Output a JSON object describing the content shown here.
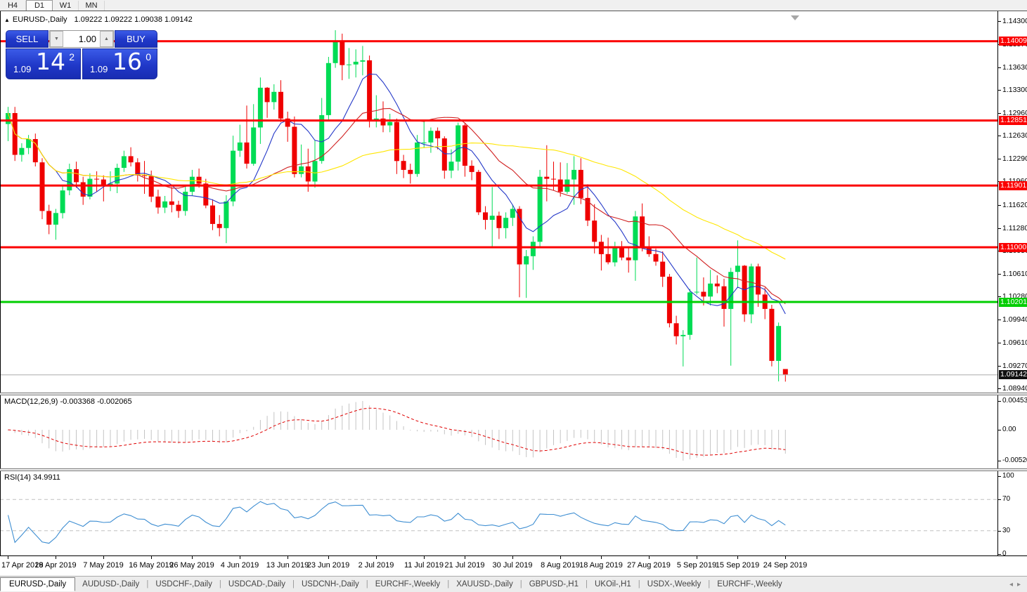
{
  "toolbar": {
    "timeframes": [
      {
        "label": "H4",
        "active": false
      },
      {
        "label": "D1",
        "active": true
      },
      {
        "label": "W1",
        "active": false
      },
      {
        "label": "MN",
        "active": false
      }
    ]
  },
  "title": {
    "arrow": "▲",
    "symbol": "EURUSD-,Daily",
    "ohlc": "1.09222 1.09222 1.09038 1.09142"
  },
  "trade_panel": {
    "sell_label": "SELL",
    "buy_label": "BUY",
    "volume": "1.00",
    "icons": {
      "down": "▼",
      "up": "▲"
    },
    "sell_price": {
      "prefix": "1.09",
      "big": "14",
      "sup": "2"
    },
    "buy_price": {
      "prefix": "1.09",
      "big": "16",
      "sup": "0"
    }
  },
  "tabs": {
    "separator": "|",
    "scroll_left": "◂",
    "scroll_right": "▸",
    "items": [
      {
        "label": "EURUSD-,Daily",
        "active": true
      },
      {
        "label": "AUDUSD-,Daily",
        "active": false
      },
      {
        "label": "USDCHF-,Daily",
        "active": false
      },
      {
        "label": "USDCAD-,Daily",
        "active": false
      },
      {
        "label": "USDCNH-,Daily",
        "active": false
      },
      {
        "label": "EURCHF-,Weekly",
        "active": false
      },
      {
        "label": "XAUUSD-,Daily",
        "active": false
      },
      {
        "label": "GBPUSD-,H1",
        "active": false
      },
      {
        "label": "UKOil-,H1",
        "active": false
      },
      {
        "label": "USDX-,Weekly",
        "active": false
      },
      {
        "label": "EURCHF-,Weekly",
        "active": false
      }
    ]
  },
  "chart_data": {
    "type": "candlestick",
    "symbol": "EURUSD-",
    "timeframe": "Daily",
    "colors": {
      "up": "#00DC55",
      "down": "#EF0000",
      "ma_fast": "#2438C8",
      "ma_mid": "#D02020",
      "ma_slow": "#FFE600",
      "hline_red": "#FB0000",
      "hline_green": "#00CE00",
      "current_line": "#ABABAB",
      "current_bg": "#111111",
      "macd_hist": "#C4C4C4",
      "macd_signal": "#E00000",
      "rsi_line": "#3E8ED2"
    },
    "price_axis_ticks": [
      "1.14300",
      "1.13970",
      "1.13630",
      "1.13300",
      "1.12960",
      "1.12630",
      "1.12290",
      "1.11960",
      "1.11620",
      "1.11280",
      "1.10950",
      "1.10610",
      "1.10280",
      "1.09940",
      "1.09610",
      "1.09270",
      "1.08940"
    ],
    "hlines": [
      {
        "price": 1.14009,
        "label": "1.14009",
        "color": "#FB0000"
      },
      {
        "price": 1.12851,
        "label": "1.12851",
        "color": "#FB0000"
      },
      {
        "price": 1.11901,
        "label": "1.11901",
        "color": "#FB0000"
      },
      {
        "price": 1.11,
        "label": "1.11000",
        "color": "#FB0000"
      },
      {
        "price": 1.10201,
        "label": "1.10201",
        "color": "#00CE00"
      }
    ],
    "current_price": {
      "price": 1.09142,
      "label": "1.09142"
    },
    "moving_averages": [
      {
        "period": 8,
        "color": "#2438C8"
      },
      {
        "period": 20,
        "color": "#D02020"
      },
      {
        "period": 45,
        "color": "#FFE600"
      }
    ],
    "date_ticks": [
      {
        "label": "17 Apr 2019",
        "bar": 0
      },
      {
        "label": "28 Apr 2019",
        "bar": 7
      },
      {
        "label": "7 May 2019",
        "bar": 14
      },
      {
        "label": "16 May 2019",
        "bar": 21
      },
      {
        "label": "26 May 2019",
        "bar": 27
      },
      {
        "label": "4 Jun 2019",
        "bar": 34
      },
      {
        "label": "13 Jun 2019",
        "bar": 41
      },
      {
        "label": "23 Jun 2019",
        "bar": 47
      },
      {
        "label": "2 Jul 2019",
        "bar": 54
      },
      {
        "label": "11 Jul 2019",
        "bar": 61
      },
      {
        "label": "21 Jul 2019",
        "bar": 67
      },
      {
        "label": "30 Jul 2019",
        "bar": 74
      },
      {
        "label": "8 Aug 2019",
        "bar": 81
      },
      {
        "label": "18 Aug 2019",
        "bar": 87
      },
      {
        "label": "27 Aug 2019",
        "bar": 94
      },
      {
        "label": "5 Sep 2019",
        "bar": 101
      },
      {
        "label": "15 Sep 2019",
        "bar": 107
      },
      {
        "label": "24 Sep 2019",
        "bar": 114
      }
    ],
    "candles": [
      [
        1.128,
        1.1305,
        1.1255,
        1.1296
      ],
      [
        1.1296,
        1.1305,
        1.1226,
        1.1235
      ],
      [
        1.1235,
        1.1252,
        1.1225,
        1.1245
      ],
      [
        1.1245,
        1.1264,
        1.1236,
        1.1258
      ],
      [
        1.1258,
        1.1266,
        1.1218,
        1.1224
      ],
      [
        1.1224,
        1.123,
        1.1141,
        1.1153
      ],
      [
        1.1153,
        1.1162,
        1.1119,
        1.1133
      ],
      [
        1.1133,
        1.1156,
        1.1111,
        1.115
      ],
      [
        1.115,
        1.119,
        1.1142,
        1.1183
      ],
      [
        1.1183,
        1.1222,
        1.1176,
        1.1214
      ],
      [
        1.1214,
        1.1225,
        1.1187,
        1.1195
      ],
      [
        1.1195,
        1.1203,
        1.1162,
        1.1174
      ],
      [
        1.1174,
        1.1208,
        1.117,
        1.12
      ],
      [
        1.12,
        1.1211,
        1.1181,
        1.1199
      ],
      [
        1.1199,
        1.1205,
        1.1167,
        1.1191
      ],
      [
        1.1191,
        1.1211,
        1.1182,
        1.1193
      ],
      [
        1.1193,
        1.1222,
        1.1179,
        1.1216
      ],
      [
        1.1216,
        1.1241,
        1.121,
        1.1233
      ],
      [
        1.1233,
        1.1246,
        1.1218,
        1.1224
      ],
      [
        1.1224,
        1.123,
        1.1196,
        1.1205
      ],
      [
        1.1205,
        1.1226,
        1.1178,
        1.1204
      ],
      [
        1.1204,
        1.1212,
        1.1166,
        1.1174
      ],
      [
        1.1174,
        1.1184,
        1.1149,
        1.1158
      ],
      [
        1.1158,
        1.1175,
        1.115,
        1.1167
      ],
      [
        1.1167,
        1.1188,
        1.1151,
        1.1162
      ],
      [
        1.1162,
        1.1168,
        1.1143,
        1.1153
      ],
      [
        1.1153,
        1.1189,
        1.1146,
        1.1181
      ],
      [
        1.1181,
        1.1213,
        1.1175,
        1.1203
      ],
      [
        1.1203,
        1.1215,
        1.1187,
        1.1193
      ],
      [
        1.1193,
        1.12,
        1.1157,
        1.1161
      ],
      [
        1.1161,
        1.117,
        1.1125,
        1.1134
      ],
      [
        1.1134,
        1.1147,
        1.1116,
        1.1128
      ],
      [
        1.1128,
        1.1176,
        1.1106,
        1.1167
      ],
      [
        1.1167,
        1.1263,
        1.116,
        1.1241
      ],
      [
        1.1241,
        1.1279,
        1.1232,
        1.1253
      ],
      [
        1.1253,
        1.1307,
        1.1215,
        1.1222
      ],
      [
        1.1222,
        1.1309,
        1.1219,
        1.1275
      ],
      [
        1.1275,
        1.1348,
        1.1251,
        1.1333
      ],
      [
        1.1333,
        1.1334,
        1.1289,
        1.1312
      ],
      [
        1.1312,
        1.1338,
        1.1301,
        1.1327
      ],
      [
        1.1327,
        1.1344,
        1.1283,
        1.1288
      ],
      [
        1.1288,
        1.1298,
        1.1254,
        1.1276
      ],
      [
        1.1276,
        1.1291,
        1.1202,
        1.1207
      ],
      [
        1.1207,
        1.125,
        1.1202,
        1.1218
      ],
      [
        1.1218,
        1.1244,
        1.1181,
        1.1196
      ],
      [
        1.1196,
        1.1256,
        1.1187,
        1.1226
      ],
      [
        1.1226,
        1.1318,
        1.1222,
        1.1293
      ],
      [
        1.1293,
        1.1378,
        1.1286,
        1.1369
      ],
      [
        1.1369,
        1.1417,
        1.1362,
        1.14
      ],
      [
        1.14,
        1.1412,
        1.1344,
        1.1366
      ],
      [
        1.1366,
        1.1391,
        1.1346,
        1.1367
      ],
      [
        1.1367,
        1.1389,
        1.1348,
        1.1371
      ],
      [
        1.1371,
        1.1394,
        1.1351,
        1.1373
      ],
      [
        1.1373,
        1.138,
        1.1275,
        1.1285
      ],
      [
        1.1285,
        1.1322,
        1.1275,
        1.1288
      ],
      [
        1.1288,
        1.1313,
        1.1268,
        1.1278
      ],
      [
        1.1278,
        1.1295,
        1.1268,
        1.1283
      ],
      [
        1.1283,
        1.1288,
        1.1207,
        1.1226
      ],
      [
        1.1226,
        1.1235,
        1.1201,
        1.1213
      ],
      [
        1.1213,
        1.1222,
        1.1193,
        1.1207
      ],
      [
        1.1207,
        1.1264,
        1.1203,
        1.1253
      ],
      [
        1.1253,
        1.1286,
        1.1245,
        1.1253
      ],
      [
        1.1253,
        1.1275,
        1.1238,
        1.127
      ],
      [
        1.127,
        1.1275,
        1.1243,
        1.1259
      ],
      [
        1.1259,
        1.1262,
        1.12,
        1.1212
      ],
      [
        1.1212,
        1.1243,
        1.1201,
        1.1225
      ],
      [
        1.1225,
        1.1282,
        1.1212,
        1.1278
      ],
      [
        1.1278,
        1.1282,
        1.1203,
        1.1219
      ],
      [
        1.1219,
        1.1227,
        1.1198,
        1.121
      ],
      [
        1.121,
        1.1213,
        1.1147,
        1.1151
      ],
      [
        1.1151,
        1.116,
        1.1126,
        1.114
      ],
      [
        1.114,
        1.1188,
        1.1101,
        1.1146
      ],
      [
        1.1146,
        1.1152,
        1.1112,
        1.1128
      ],
      [
        1.1128,
        1.1151,
        1.1113,
        1.1143
      ],
      [
        1.1143,
        1.1162,
        1.1131,
        1.1156
      ],
      [
        1.1156,
        1.116,
        1.1027,
        1.1075
      ],
      [
        1.1075,
        1.1096,
        1.1026,
        1.1087
      ],
      [
        1.1087,
        1.1116,
        1.1067,
        1.1108
      ],
      [
        1.1108,
        1.1213,
        1.1101,
        1.1203
      ],
      [
        1.1203,
        1.1249,
        1.1167,
        1.12
      ],
      [
        1.12,
        1.1225,
        1.1183,
        1.1199
      ],
      [
        1.1199,
        1.1224,
        1.1174,
        1.1181
      ],
      [
        1.1181,
        1.1223,
        1.1178,
        1.1199
      ],
      [
        1.1199,
        1.1233,
        1.1162,
        1.1213
      ],
      [
        1.1213,
        1.123,
        1.1163,
        1.1172
      ],
      [
        1.1172,
        1.1192,
        1.1131,
        1.1139
      ],
      [
        1.1139,
        1.1163,
        1.1091,
        1.1108
      ],
      [
        1.1108,
        1.1118,
        1.1066,
        1.109
      ],
      [
        1.109,
        1.1114,
        1.1075,
        1.1078
      ],
      [
        1.1078,
        1.1108,
        1.1072,
        1.11
      ],
      [
        1.11,
        1.1109,
        1.1081,
        1.1085
      ],
      [
        1.1085,
        1.1099,
        1.1063,
        1.1081
      ],
      [
        1.1081,
        1.1153,
        1.1051,
        1.1145
      ],
      [
        1.1145,
        1.1164,
        1.1094,
        1.1101
      ],
      [
        1.1101,
        1.1116,
        1.1086,
        1.109
      ],
      [
        1.109,
        1.1098,
        1.1073,
        1.1079
      ],
      [
        1.1079,
        1.1094,
        1.1042,
        1.1057
      ],
      [
        1.1057,
        1.1061,
        1.0983,
        1.0989
      ],
      [
        1.0989,
        1.1,
        1.0958,
        1.097
      ],
      [
        1.097,
        1.0979,
        1.0926,
        1.0972
      ],
      [
        1.0972,
        1.1039,
        1.0965,
        1.1034
      ],
      [
        1.1034,
        1.1085,
        1.1031,
        1.1035
      ],
      [
        1.1035,
        1.1056,
        1.1015,
        1.1028
      ],
      [
        1.1028,
        1.1067,
        1.1015,
        1.1047
      ],
      [
        1.1047,
        1.1059,
        1.1033,
        1.1043
      ],
      [
        1.1043,
        1.1054,
        1.0984,
        1.101
      ],
      [
        1.101,
        1.107,
        1.0927,
        1.1064
      ],
      [
        1.1064,
        1.111,
        1.1042,
        1.1073
      ],
      [
        1.1073,
        1.1074,
        1.0991,
        1.1002
      ],
      [
        1.1002,
        1.1076,
        1.0989,
        1.1072
      ],
      [
        1.1072,
        1.1076,
        1.1013,
        1.1031
      ],
      [
        1.1031,
        1.1041,
        1.0995,
        1.101
      ],
      [
        1.101,
        1.1016,
        1.0926,
        1.0934
      ],
      [
        1.0934,
        1.099,
        1.0904,
        1.0985
      ],
      [
        1.09222,
        1.09222,
        1.09038,
        1.09142
      ]
    ],
    "indicators": {
      "macd": {
        "label": "MACD(12,26,9) -0.003368 -0.002065",
        "params": [
          12,
          26,
          9
        ],
        "values": [
          -0.003368,
          -0.002065
        ],
        "axis": [
          "0.004536",
          "0.00",
          "-0.005205"
        ]
      },
      "rsi": {
        "label": "RSI(14) 34.9911",
        "period": 14,
        "value": 34.9911,
        "axis": [
          "100",
          "70",
          "30",
          "0"
        ],
        "levels": [
          70,
          30
        ]
      }
    }
  }
}
